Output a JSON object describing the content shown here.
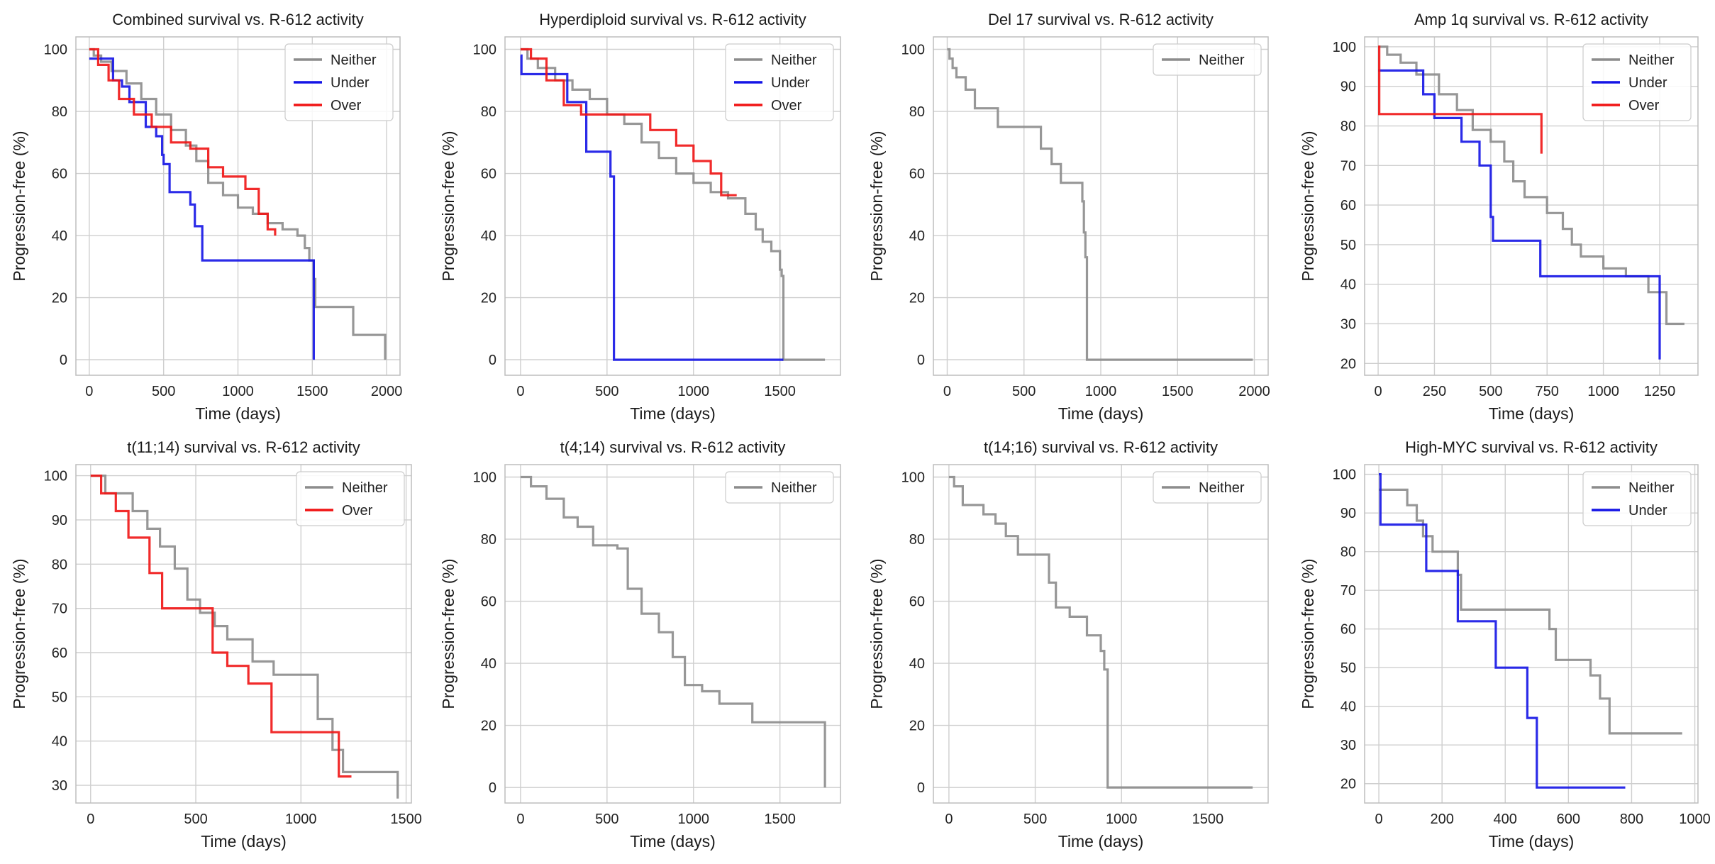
{
  "figure": {
    "colors": {
      "Neither": "#8c8c8c",
      "Under": "#1414e6",
      "Over": "#f01414"
    },
    "grid": true
  },
  "chart_data": [
    {
      "type": "line",
      "title": "Combined survival vs. R-612 activity",
      "xlabel": "Time (days)",
      "ylabel": "Progression-free (%)",
      "xlim": [
        -90,
        2090
      ],
      "ylim": [
        -5,
        104
      ],
      "xticks": [
        0,
        500,
        1000,
        1500,
        2000
      ],
      "yticks": [
        0,
        20,
        40,
        60,
        80,
        100
      ],
      "legend": [
        "Neither",
        "Under",
        "Over"
      ],
      "legend_position": "top-right",
      "series": [
        {
          "name": "Neither",
          "x": [
            0,
            30,
            80,
            150,
            250,
            350,
            450,
            550,
            650,
            720,
            800,
            900,
            1000,
            1100,
            1200,
            1300,
            1400,
            1450,
            1480,
            1510,
            1520,
            1760,
            1775,
            1990
          ],
          "y": [
            100,
            98,
            96,
            93,
            89,
            84,
            79,
            74,
            69,
            64,
            57,
            53,
            49,
            47,
            44,
            42,
            40,
            36,
            32,
            26,
            17,
            17,
            8,
            0
          ]
        },
        {
          "name": "Under",
          "x": [
            0,
            150,
            160,
            220,
            270,
            360,
            380,
            450,
            490,
            500,
            540,
            620,
            680,
            710,
            760,
            1240,
            1510
          ],
          "y": [
            97,
            97,
            90,
            88,
            83,
            83,
            75,
            72,
            66,
            63,
            54,
            54,
            50,
            43,
            32,
            32,
            0
          ]
        },
        {
          "name": "Over",
          "x": [
            0,
            60,
            130,
            200,
            300,
            420,
            550,
            680,
            800,
            900,
            1050,
            1140,
            1200,
            1250
          ],
          "y": [
            100,
            95,
            90,
            84,
            79,
            75,
            70,
            68,
            62,
            59,
            55,
            47,
            42,
            40
          ]
        }
      ]
    },
    {
      "type": "line",
      "title": "Hyperdiploid survival vs. R-612 activity",
      "xlabel": "Time (days)",
      "ylabel": "Progression-free (%)",
      "xlim": [
        -90,
        1850
      ],
      "ylim": [
        -5,
        104
      ],
      "xticks": [
        0,
        500,
        1000,
        1500
      ],
      "yticks": [
        0,
        20,
        40,
        60,
        80,
        100
      ],
      "legend": [
        "Neither",
        "Under",
        "Over"
      ],
      "legend_position": "top-right",
      "series": [
        {
          "name": "Neither",
          "x": [
            0,
            40,
            100,
            200,
            300,
            400,
            500,
            600,
            700,
            800,
            900,
            1000,
            1100,
            1200,
            1300,
            1360,
            1400,
            1450,
            1500,
            1510,
            1520,
            1760
          ],
          "y": [
            100,
            97,
            94,
            90,
            87,
            84,
            79,
            76,
            70,
            65,
            60,
            57,
            54,
            52,
            47,
            42,
            38,
            35,
            29,
            27,
            0,
            0
          ]
        },
        {
          "name": "Under",
          "x": [
            0,
            5,
            140,
            270,
            380,
            520,
            540,
            1520
          ],
          "y": [
            98,
            92,
            92,
            83,
            67,
            59,
            0,
            0
          ]
        },
        {
          "name": "Over",
          "x": [
            0,
            60,
            150,
            250,
            350,
            650,
            750,
            900,
            1000,
            1100,
            1160,
            1250
          ],
          "y": [
            100,
            97,
            90,
            82,
            79,
            79,
            74,
            69,
            64,
            60,
            53,
            53
          ]
        }
      ]
    },
    {
      "type": "line",
      "title": "Del 17 survival vs. R-612 activity",
      "xlabel": "Time (days)",
      "ylabel": "Progression-free (%)",
      "xlim": [
        -90,
        2090
      ],
      "ylim": [
        -5,
        104
      ],
      "xticks": [
        0,
        500,
        1000,
        1500,
        2000
      ],
      "yticks": [
        0,
        20,
        40,
        60,
        80,
        100
      ],
      "legend": [
        "Neither"
      ],
      "legend_position": "top-right",
      "series": [
        {
          "name": "Neither",
          "x": [
            0,
            15,
            35,
            60,
            120,
            180,
            330,
            540,
            610,
            680,
            740,
            880,
            890,
            900,
            910,
            1990
          ],
          "y": [
            100,
            97,
            94,
            91,
            87,
            81,
            75,
            75,
            68,
            63,
            57,
            51,
            41,
            33,
            0,
            0
          ]
        }
      ]
    },
    {
      "type": "line",
      "title": "Amp 1q survival vs. R-612 activity",
      "xlabel": "Time (days)",
      "ylabel": "Progression-free (%)",
      "xlim": [
        -60,
        1420
      ],
      "ylim": [
        17,
        102.5
      ],
      "xticks": [
        0,
        250,
        500,
        750,
        1000,
        1250
      ],
      "yticks": [
        20,
        30,
        40,
        50,
        60,
        70,
        80,
        90,
        100
      ],
      "legend": [
        "Neither",
        "Under",
        "Over"
      ],
      "legend_position": "top-right",
      "series": [
        {
          "name": "Neither",
          "x": [
            0,
            40,
            100,
            170,
            270,
            350,
            420,
            500,
            560,
            600,
            650,
            750,
            820,
            860,
            900,
            1000,
            1100,
            1200,
            1280,
            1360
          ],
          "y": [
            100,
            98,
            96,
            93,
            88,
            84,
            79,
            76,
            71,
            66,
            62,
            58,
            54,
            50,
            47,
            44,
            42,
            38,
            30,
            30
          ]
        },
        {
          "name": "Under",
          "x": [
            0,
            170,
            200,
            250,
            370,
            450,
            500,
            510,
            720,
            1250
          ],
          "y": [
            94,
            94,
            88,
            82,
            76,
            70,
            57,
            51,
            42,
            21
          ]
        },
        {
          "name": "Over",
          "x": [
            0,
            5,
            720,
            725
          ],
          "y": [
            100,
            83,
            83,
            73
          ]
        }
      ]
    },
    {
      "type": "line",
      "title": "t(11;14) survival vs. R-612 activity",
      "xlabel": "Time (days)",
      "ylabel": "Progression-free (%)",
      "xlim": [
        -70,
        1525
      ],
      "ylim": [
        26,
        102.5
      ],
      "xticks": [
        0,
        500,
        1000,
        1500
      ],
      "yticks": [
        30,
        40,
        50,
        60,
        70,
        80,
        90,
        100
      ],
      "legend": [
        "Neither",
        "Over"
      ],
      "legend_position": "top-right",
      "series": [
        {
          "name": "Neither",
          "x": [
            0,
            70,
            200,
            270,
            330,
            400,
            460,
            520,
            590,
            650,
            770,
            870,
            1080,
            1150,
            1200,
            1460
          ],
          "y": [
            100,
            96,
            92,
            88,
            84,
            79,
            72,
            69,
            66,
            63,
            58,
            55,
            45,
            38,
            33,
            27
          ]
        },
        {
          "name": "Over",
          "x": [
            0,
            50,
            120,
            180,
            280,
            340,
            520,
            580,
            650,
            750,
            860,
            1060,
            1180,
            1240
          ],
          "y": [
            100,
            96,
            92,
            86,
            78,
            70,
            70,
            60,
            57,
            53,
            42,
            42,
            32,
            32
          ]
        }
      ]
    },
    {
      "type": "line",
      "title": "t(4;14) survival vs. R-612 activity",
      "xlabel": "Time (days)",
      "ylabel": "Progression-free (%)",
      "xlim": [
        -90,
        1850
      ],
      "ylim": [
        -5,
        104
      ],
      "xticks": [
        0,
        500,
        1000,
        1500
      ],
      "yticks": [
        0,
        20,
        40,
        60,
        80,
        100
      ],
      "legend": [
        "Neither"
      ],
      "legend_position": "top-right",
      "series": [
        {
          "name": "Neither",
          "x": [
            0,
            60,
            150,
            250,
            330,
            420,
            560,
            620,
            700,
            800,
            880,
            950,
            1050,
            1150,
            1340,
            1760
          ],
          "y": [
            100,
            97,
            93,
            87,
            84,
            78,
            77,
            64,
            56,
            50,
            42,
            33,
            31,
            27,
            21,
            0
          ]
        }
      ]
    },
    {
      "type": "line",
      "title": "t(14;16) survival vs. R-612 activity",
      "xlabel": "Time (days)",
      "ylabel": "Progression-free (%)",
      "xlim": [
        -90,
        1850
      ],
      "ylim": [
        -5,
        104
      ],
      "xticks": [
        0,
        500,
        1000,
        1500
      ],
      "yticks": [
        0,
        20,
        40,
        60,
        80,
        100
      ],
      "legend": [
        "Neither"
      ],
      "legend_position": "top-right",
      "series": [
        {
          "name": "Neither",
          "x": [
            0,
            30,
            80,
            200,
            270,
            330,
            400,
            550,
            580,
            620,
            700,
            800,
            880,
            900,
            920,
            1760
          ],
          "y": [
            100,
            97,
            91,
            88,
            85,
            81,
            75,
            75,
            66,
            58,
            55,
            49,
            44,
            38,
            0,
            0
          ]
        }
      ]
    },
    {
      "type": "line",
      "title": "High-MYC survival vs. R-612 activity",
      "xlabel": "Time (days)",
      "ylabel": "Progression-free (%)",
      "xlim": [
        -45,
        1010
      ],
      "ylim": [
        15,
        102.5
      ],
      "xticks": [
        0,
        200,
        400,
        600,
        800,
        1000
      ],
      "yticks": [
        20,
        30,
        40,
        50,
        60,
        70,
        80,
        90,
        100
      ],
      "legend": [
        "Neither",
        "Under"
      ],
      "legend_position": "top-right",
      "series": [
        {
          "name": "Neither",
          "x": [
            0,
            90,
            120,
            140,
            170,
            250,
            260,
            540,
            560,
            670,
            700,
            730,
            960
          ],
          "y": [
            96,
            92,
            88,
            84,
            80,
            74,
            65,
            60,
            52,
            48,
            42,
            33,
            33
          ]
        },
        {
          "name": "Under",
          "x": [
            0,
            5,
            150,
            250,
            370,
            470,
            500,
            780
          ],
          "y": [
            100,
            87,
            75,
            62,
            50,
            37,
            19,
            19
          ]
        }
      ]
    }
  ]
}
